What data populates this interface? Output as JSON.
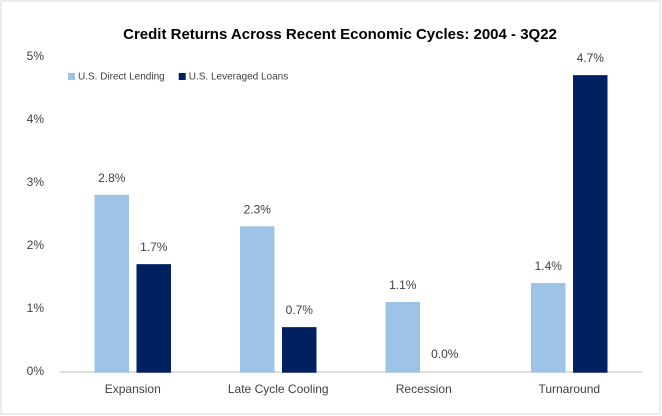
{
  "chart_data": {
    "type": "bar",
    "title": "Credit Returns Across Recent Economic Cycles: 2004 - 3Q22",
    "categories": [
      "Expansion",
      "Late Cycle Cooling",
      "Recession",
      "Turnaround"
    ],
    "series": [
      {
        "name": "U.S. Direct Lending",
        "color": "#9dc3e6",
        "values": [
          2.8,
          2.3,
          1.1,
          1.4
        ],
        "value_labels": [
          "2.8%",
          "2.3%",
          "1.1%",
          "1.4%"
        ]
      },
      {
        "name": "U.S. Leveraged Loans",
        "color": "#002060",
        "values": [
          1.7,
          0.7,
          0.0,
          4.7
        ],
        "value_labels": [
          "1.7%",
          "0.7%",
          "0.0%",
          "4.7%"
        ]
      }
    ],
    "ylim": [
      0,
      5
    ],
    "yticks": [
      {
        "value": 0,
        "label": "0%"
      },
      {
        "value": 1,
        "label": "1%"
      },
      {
        "value": 2,
        "label": "2%"
      },
      {
        "value": 3,
        "label": "3%"
      },
      {
        "value": 4,
        "label": "4%"
      },
      {
        "value": 5,
        "label": "5%"
      }
    ],
    "grid": false,
    "legend": "top-left"
  }
}
